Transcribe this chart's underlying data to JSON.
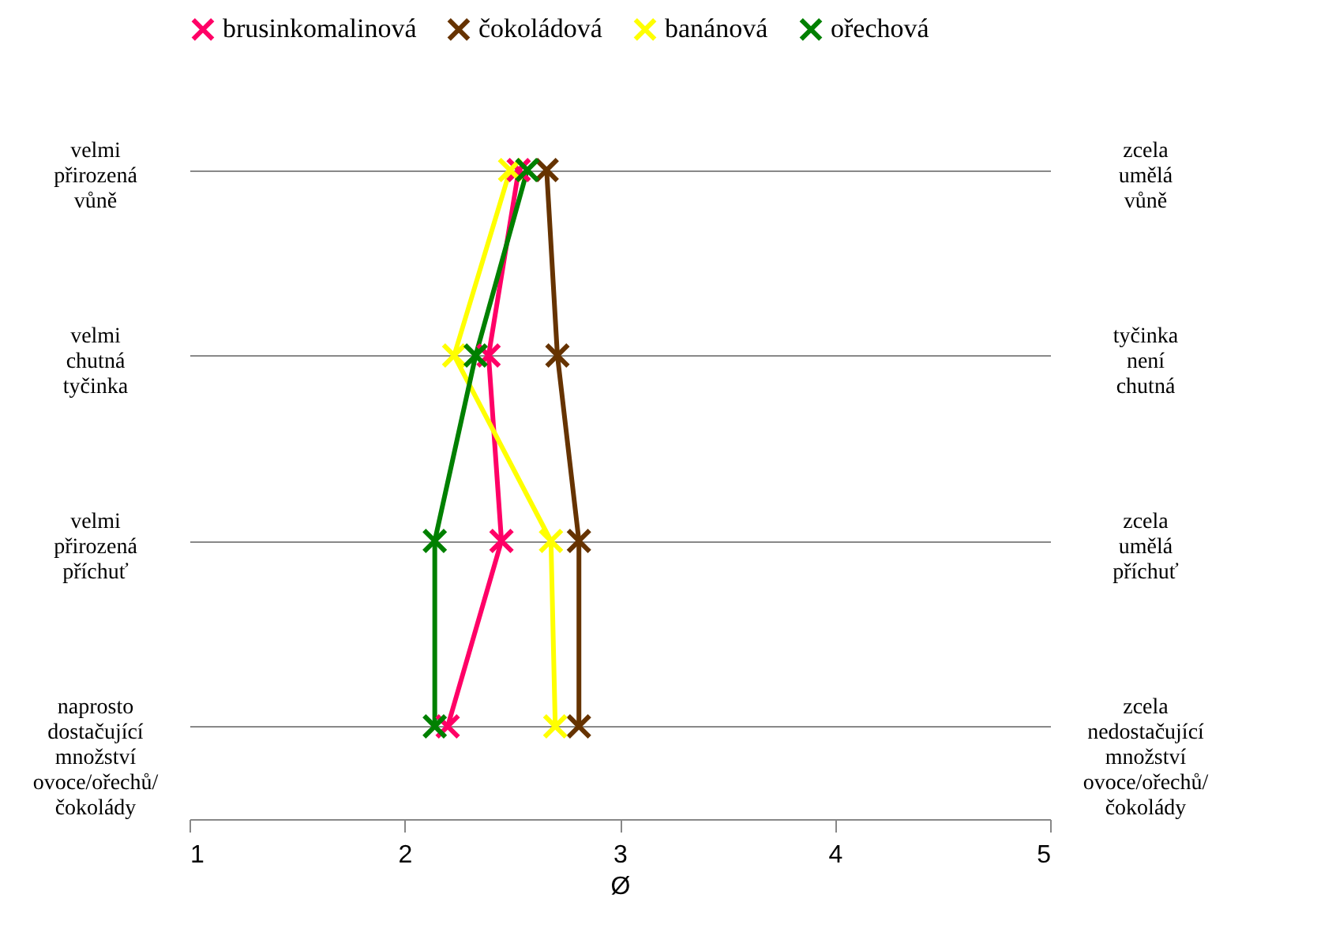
{
  "chart_data": {
    "type": "line",
    "orientation": "horizontal",
    "categories": [
      "velmi přirozená vůně",
      "velmi chutná tyčinka",
      "velmi přirozená příchuť",
      "naprosto dostačující množství ovoce/ořechů/ čokolády"
    ],
    "y2_categories": [
      "zcela umělá vůně",
      "tyčinka není chutná",
      "zcela umělá příchuť",
      "zcela nedostačující množství ovoce/ořechů/ čokolády"
    ],
    "series": [
      {
        "name": "brusinkomalinová",
        "color": "#ff0066",
        "values": [
          2.53,
          2.39,
          2.45,
          2.2
        ]
      },
      {
        "name": "čokoládová",
        "color": "#663300",
        "values": [
          2.66,
          2.71,
          2.81,
          2.81
        ]
      },
      {
        "name": "banánová",
        "color": "#ffff00",
        "values": [
          2.49,
          2.23,
          2.68,
          2.7
        ]
      },
      {
        "name": "ořechová",
        "color": "#008000",
        "values": [
          2.57,
          2.33,
          2.14,
          2.14
        ]
      }
    ],
    "xlabel": "Ø",
    "xlim": [
      1,
      5
    ],
    "xticks": [
      1,
      2,
      3,
      4,
      5
    ],
    "grid": "y",
    "legend": "top",
    "marker": "cross",
    "line_style": "solid"
  }
}
